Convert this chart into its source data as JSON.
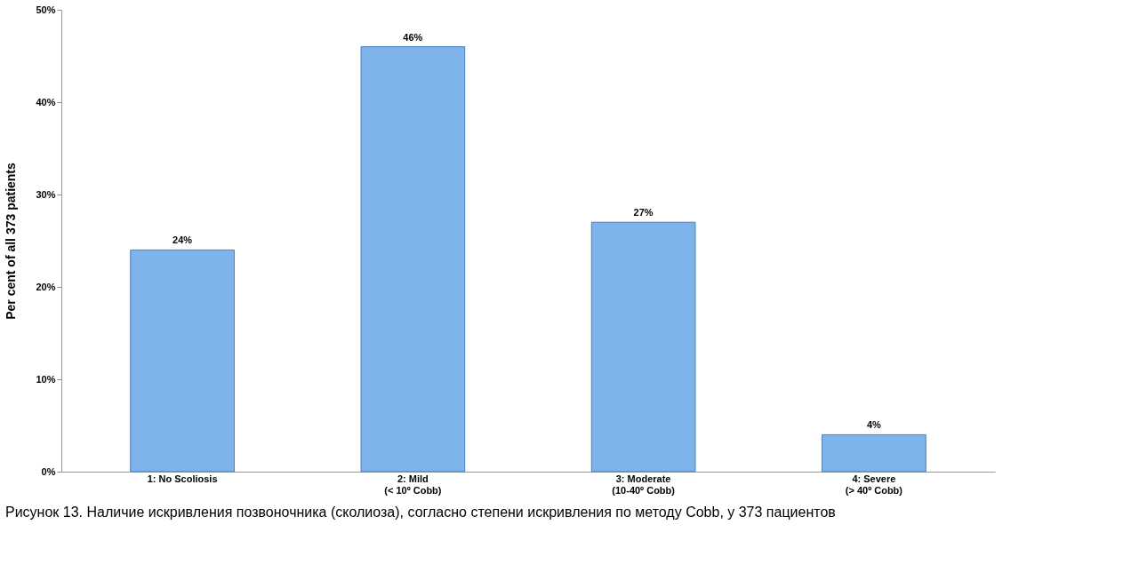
{
  "chart_data": {
    "type": "bar",
    "ylabel": "Per cent of all 373 patients",
    "categories": [
      "1: No Scoliosis",
      "2: Mild\n(< 10º Cobb)",
      "3: Moderate\n(10-40º Cobb)",
      "4: Severe\n(> 40º Cobb)"
    ],
    "values": [
      24,
      46,
      27,
      4
    ],
    "value_labels": [
      "24%",
      "46%",
      "27%",
      "4%"
    ],
    "color": "#7fb3ec",
    "ylim": [
      0,
      50
    ],
    "yticks": [
      {
        "value": 0,
        "label": "0%"
      },
      {
        "value": 10,
        "label": "10%"
      },
      {
        "value": 20,
        "label": "20%"
      },
      {
        "value": 30,
        "label": "30%"
      },
      {
        "value": 40,
        "label": "40%"
      },
      {
        "value": 50,
        "label": "50%"
      }
    ],
    "annotations": [
      "Рисунок 13. Наличие искривления позвоночника (сколиоза), согласно степени искривления по методу Cobb, у 373 пациентов"
    ]
  }
}
